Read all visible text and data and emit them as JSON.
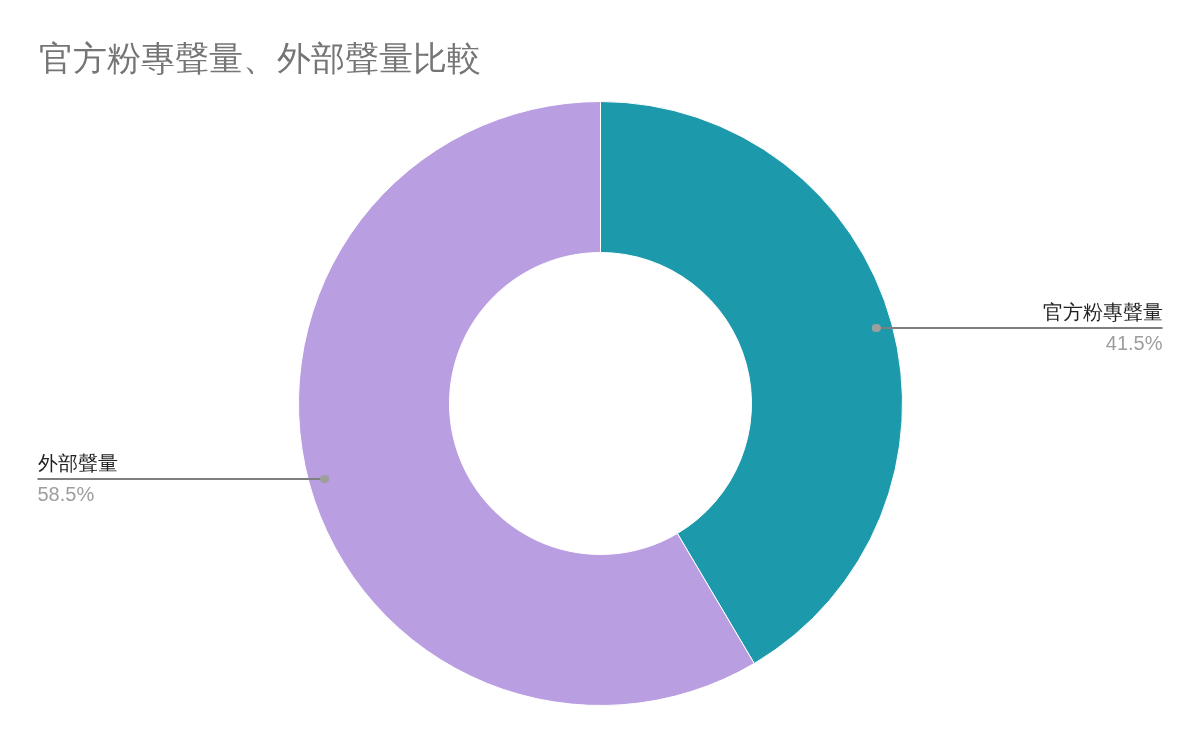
{
  "chart_data": {
    "type": "donut",
    "title": "官方粉專聲量、外部聲量比較",
    "categories": [
      "官方粉專聲量",
      "外部聲量"
    ],
    "values": [
      41.5,
      58.5
    ],
    "colors": [
      "#1c9aab",
      "#b99fe1"
    ],
    "value_labels": [
      "41.5%",
      "58.5%"
    ]
  }
}
